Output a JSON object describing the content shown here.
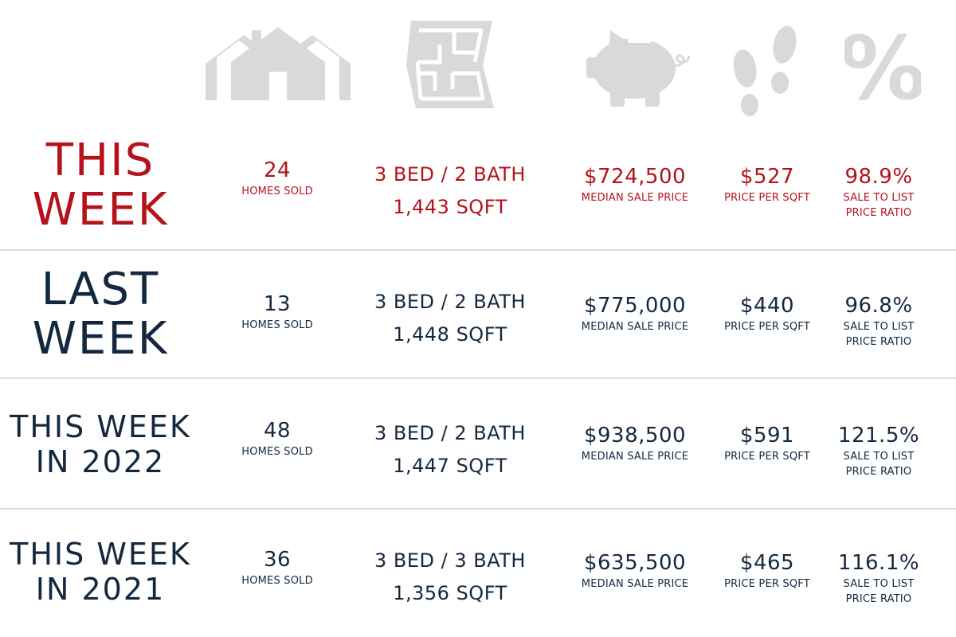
{
  "colors": {
    "highlight": "#b5121b",
    "primary": "#13283f",
    "icon": "#d9d9dc",
    "divider": "#dcdcdc"
  },
  "icons": [
    "house-icon",
    "floor-plan-icon",
    "piggy-bank-icon",
    "footprints-icon",
    "percent-icon"
  ],
  "icon_text": {
    "percent": "%"
  },
  "rows": [
    {
      "label_line1": "THIS",
      "label_line2": "WEEK",
      "homes_sold": "24",
      "homes_sold_caption": "HOMES SOLD",
      "beds_baths": "3 BED / 2 BATH",
      "sqft": "1,443 SQFT",
      "median_price": "$724,500",
      "median_caption": "MEDIAN SALE PRICE",
      "price_per_sqft": "$527",
      "ppsf_caption": "PRICE PER SQFT",
      "ratio": "98.9%",
      "ratio_caption_1": "SALE TO LIST",
      "ratio_caption_2": "PRICE RATIO"
    },
    {
      "label_line1": "LAST",
      "label_line2": "WEEK",
      "homes_sold": "13",
      "homes_sold_caption": "HOMES SOLD",
      "beds_baths": "3 BED / 2 BATH",
      "sqft": "1,448 SQFT",
      "median_price": "$775,000",
      "median_caption": "MEDIAN SALE PRICE",
      "price_per_sqft": "$440",
      "ppsf_caption": "PRICE PER SQFT",
      "ratio": "96.8%",
      "ratio_caption_1": "SALE TO LIST",
      "ratio_caption_2": "PRICE RATIO"
    },
    {
      "label_line1": "THIS WEEK",
      "label_line2": "IN 2022",
      "homes_sold": "48",
      "homes_sold_caption": "HOMES SOLD",
      "beds_baths": "3 BED / 2 BATH",
      "sqft": "1,447 SQFT",
      "median_price": "$938,500",
      "median_caption": "MEDIAN SALE PRICE",
      "price_per_sqft": "$591",
      "ppsf_caption": "PRICE PER SQFT",
      "ratio": "121.5%",
      "ratio_caption_1": "SALE TO LIST",
      "ratio_caption_2": "PRICE RATIO"
    },
    {
      "label_line1": "THIS WEEK",
      "label_line2": "IN 2021",
      "homes_sold": "36",
      "homes_sold_caption": "HOMES SOLD",
      "beds_baths": "3 BED / 3 BATH",
      "sqft": "1,356 SQFT",
      "median_price": "$635,500",
      "median_caption": "MEDIAN SALE PRICE",
      "price_per_sqft": "$465",
      "ppsf_caption": "PRICE PER SQFT",
      "ratio": "116.1%",
      "ratio_caption_1": "SALE TO LIST",
      "ratio_caption_2": "PRICE RATIO"
    }
  ]
}
